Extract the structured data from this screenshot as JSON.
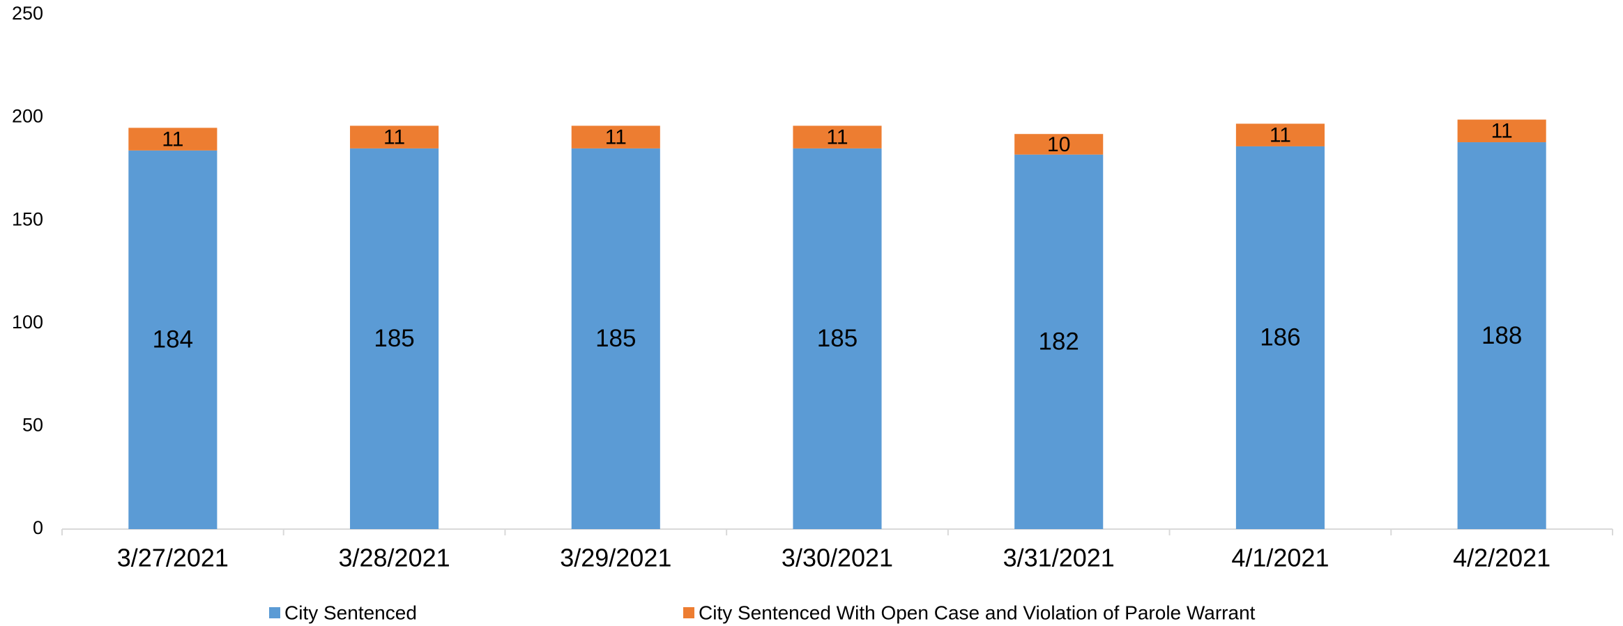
{
  "chart_data": {
    "type": "stacked_bar",
    "categories": [
      "3/27/2021",
      "3/28/2021",
      "3/29/2021",
      "3/30/2021",
      "3/31/2021",
      "4/1/2021",
      "4/2/2021"
    ],
    "series": [
      {
        "name": "City Sentenced",
        "color": "#5b9bd5",
        "values": [
          184,
          185,
          185,
          185,
          182,
          186,
          188
        ]
      },
      {
        "name": "City Sentenced With Open Case and Violation of Parole Warrant",
        "color": "#ed7d31",
        "values": [
          11,
          11,
          11,
          11,
          10,
          11,
          11
        ]
      }
    ],
    "ylim": [
      0,
      250
    ],
    "yticks": [
      0,
      50,
      100,
      150,
      200,
      250
    ],
    "grid": false,
    "legend": "bottom"
  }
}
